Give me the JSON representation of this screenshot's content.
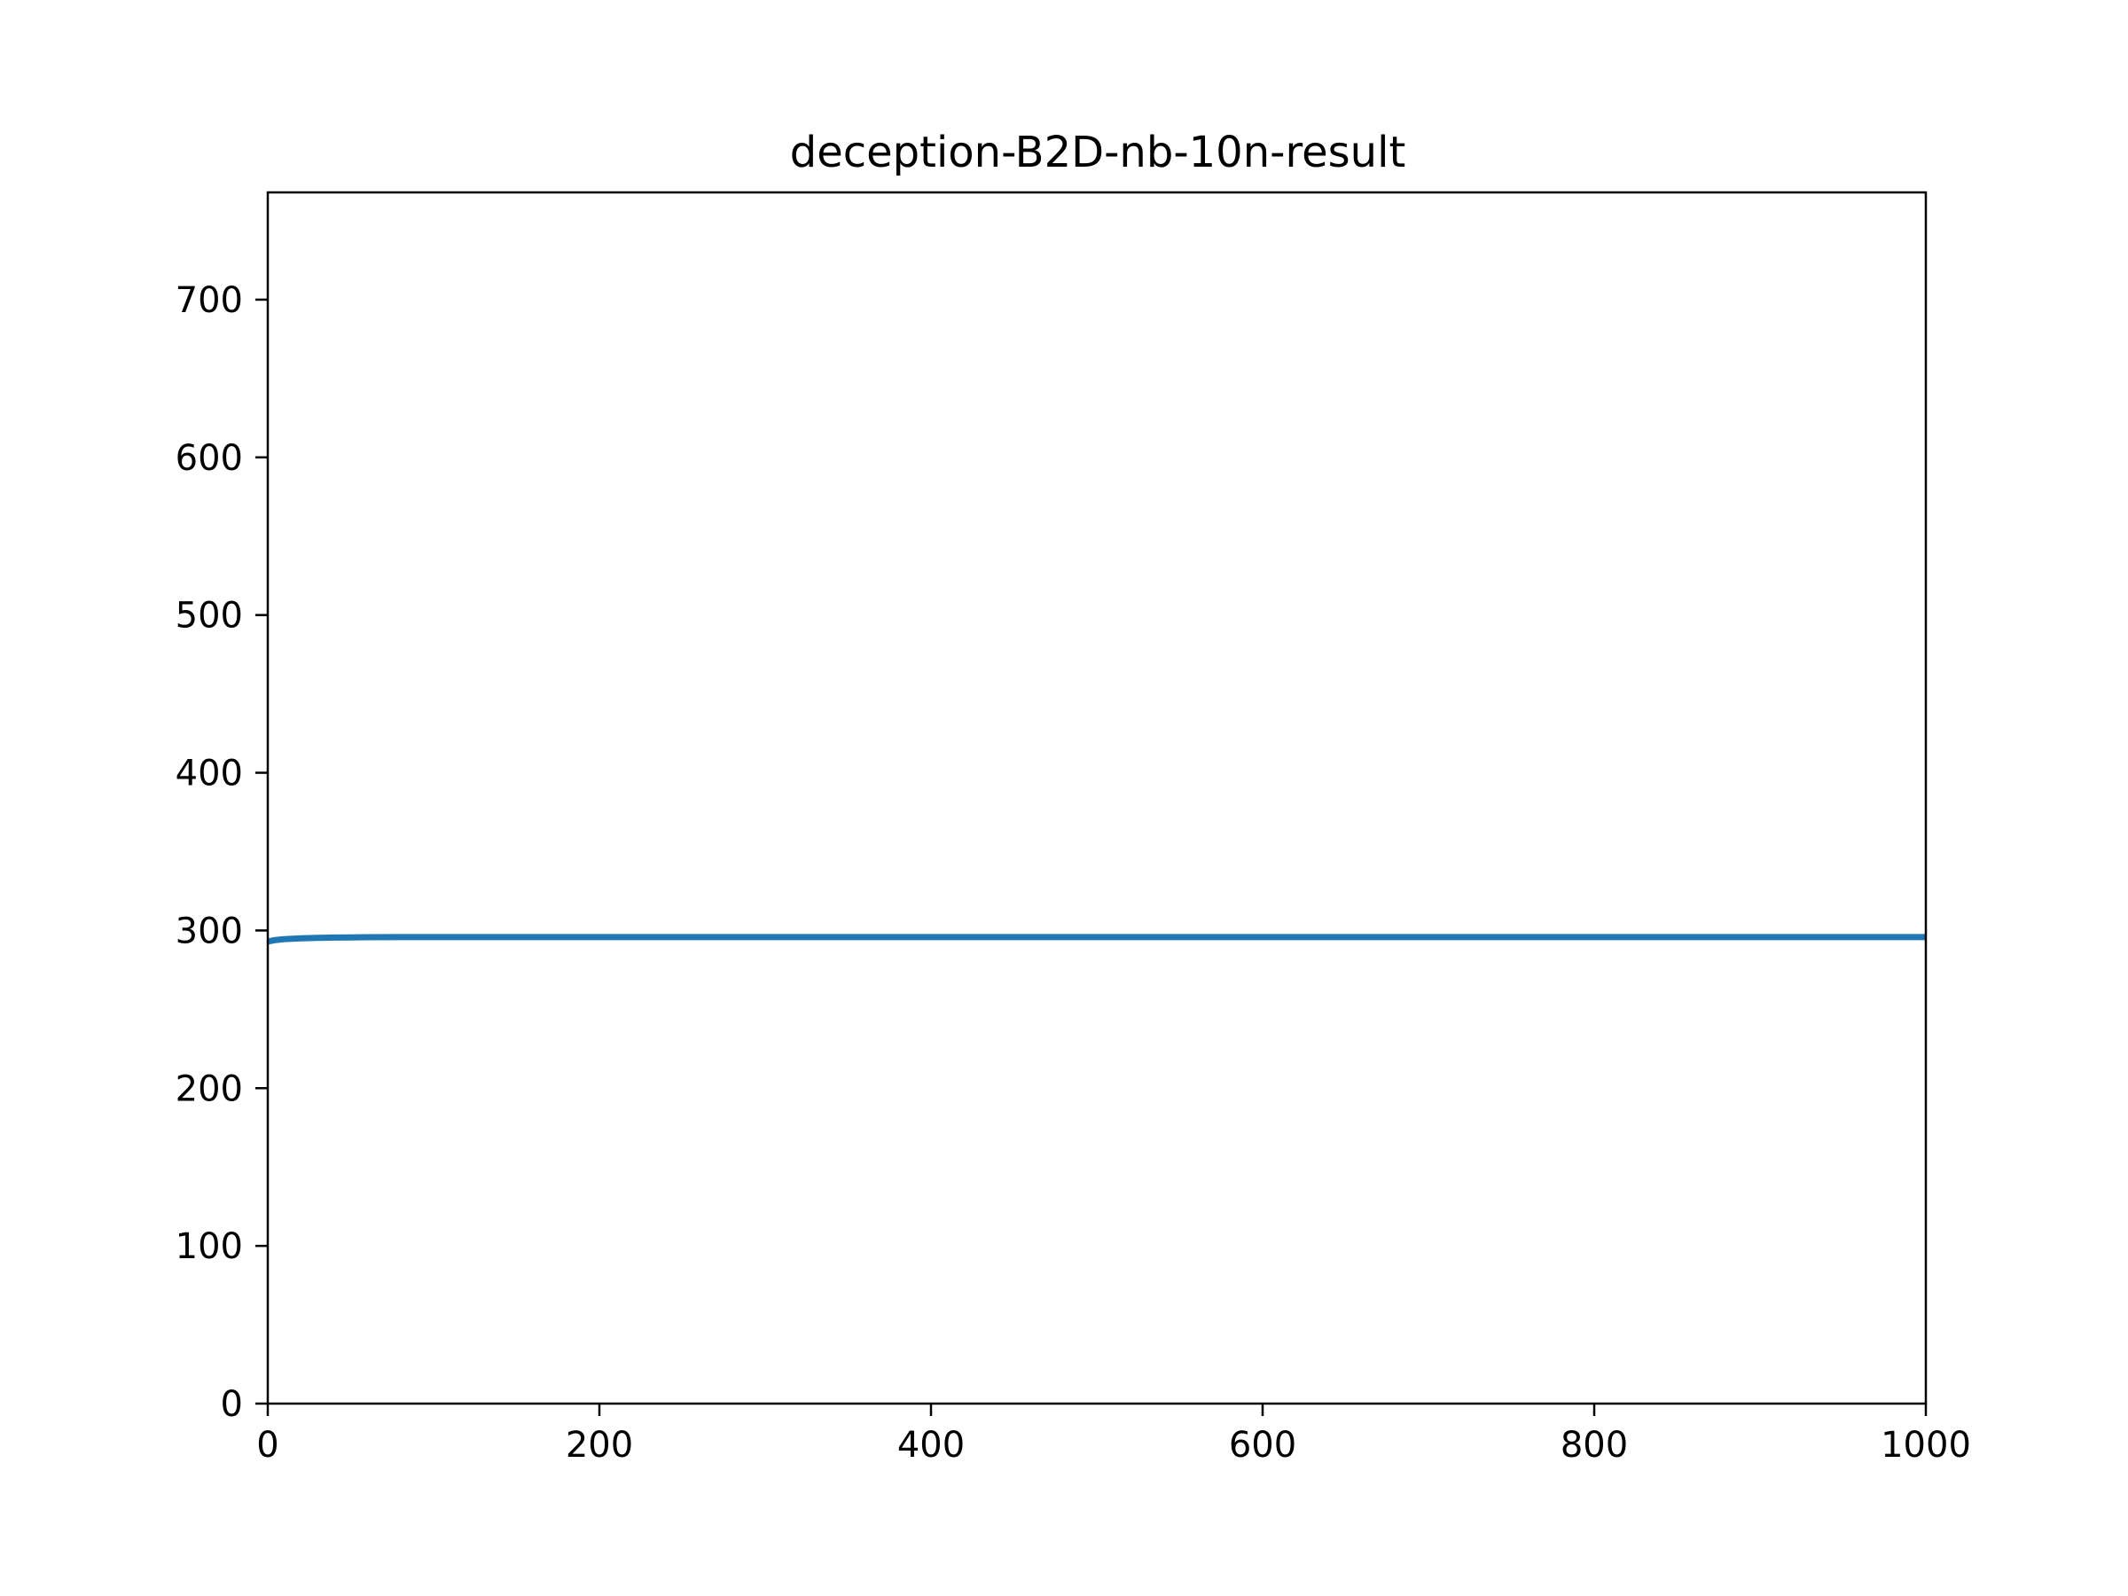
{
  "chart_data": {
    "type": "line",
    "title": "deception-B2D-nb-10n-result",
    "xlabel": "",
    "ylabel": "",
    "xlim": [
      0,
      1000
    ],
    "ylim": [
      0,
      768
    ],
    "xticks": [
      0,
      200,
      400,
      600,
      800,
      1000
    ],
    "yticks": [
      0,
      100,
      200,
      300,
      400,
      500,
      600,
      700
    ],
    "xtick_labels": [
      "0",
      "200",
      "400",
      "600",
      "800",
      "1000"
    ],
    "ytick_labels": [
      "0",
      "100",
      "200",
      "300",
      "400",
      "500",
      "600",
      "700"
    ],
    "grid": false,
    "legend": "none",
    "series": [
      {
        "color": "#1f77b4",
        "x": [
          0,
          5,
          10,
          20,
          30,
          40,
          50,
          60,
          80,
          100,
          200,
          300,
          400,
          500,
          600,
          700,
          800,
          900,
          1000
        ],
        "y": [
          293,
          294,
          294.5,
          295,
          295.3,
          295.5,
          295.6,
          295.7,
          295.8,
          295.8,
          295.8,
          295.8,
          295.8,
          295.8,
          295.8,
          295.8,
          295.8,
          295.8,
          295.8
        ]
      }
    ]
  }
}
